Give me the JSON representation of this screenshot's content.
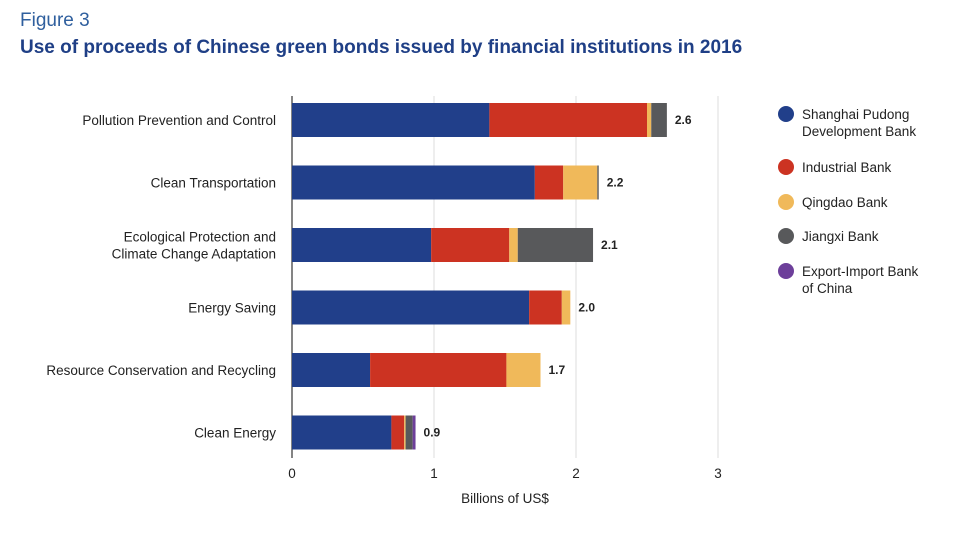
{
  "figure_label": "Figure 3",
  "title": "Use of proceeds of Chinese green bonds issued by financial institutions in 2016",
  "chart_data": {
    "type": "bar",
    "orientation": "horizontal",
    "stacked": true,
    "categories": [
      [
        "Pollution Prevention and Control"
      ],
      [
        "Clean Transportation"
      ],
      [
        "Ecological Protection and",
        "Climate Change Adaptation"
      ],
      [
        "Energy Saving"
      ],
      [
        "Resource Conservation and Recycling"
      ],
      [
        "Clean Energy"
      ]
    ],
    "series": [
      {
        "name": [
          "Shanghai Pudong",
          "Development Bank"
        ],
        "color": "#213f8a",
        "values": [
          1.39,
          1.71,
          0.98,
          1.67,
          0.55,
          0.7
        ]
      },
      {
        "name": [
          "Industrial Bank"
        ],
        "color": "#cc3322",
        "values": [
          1.11,
          0.2,
          0.55,
          0.23,
          0.96,
          0.09
        ]
      },
      {
        "name": [
          "Qingdao Bank"
        ],
        "color": "#f0b95a",
        "values": [
          0.03,
          0.24,
          0.06,
          0.06,
          0.24,
          0.01
        ]
      },
      {
        "name": [
          "Jiangxi Bank"
        ],
        "color": "#58595b",
        "values": [
          0.11,
          0.01,
          0.53,
          0.0,
          0.0,
          0.05
        ]
      },
      {
        "name": [
          "Export-Import Bank",
          "of China"
        ],
        "color": "#6d3f9a",
        "values": [
          0.0,
          0.0,
          0.0,
          0.0,
          0.0,
          0.02
        ]
      }
    ],
    "totals": [
      "2.6",
      "2.2",
      "2.1",
      "2.0",
      "1.7",
      "0.9"
    ],
    "xlabel": "Billions of US$",
    "xlim": [
      0,
      3
    ],
    "xticks": [
      0,
      1,
      2,
      3
    ],
    "grid": "vertical",
    "legend": "right"
  }
}
